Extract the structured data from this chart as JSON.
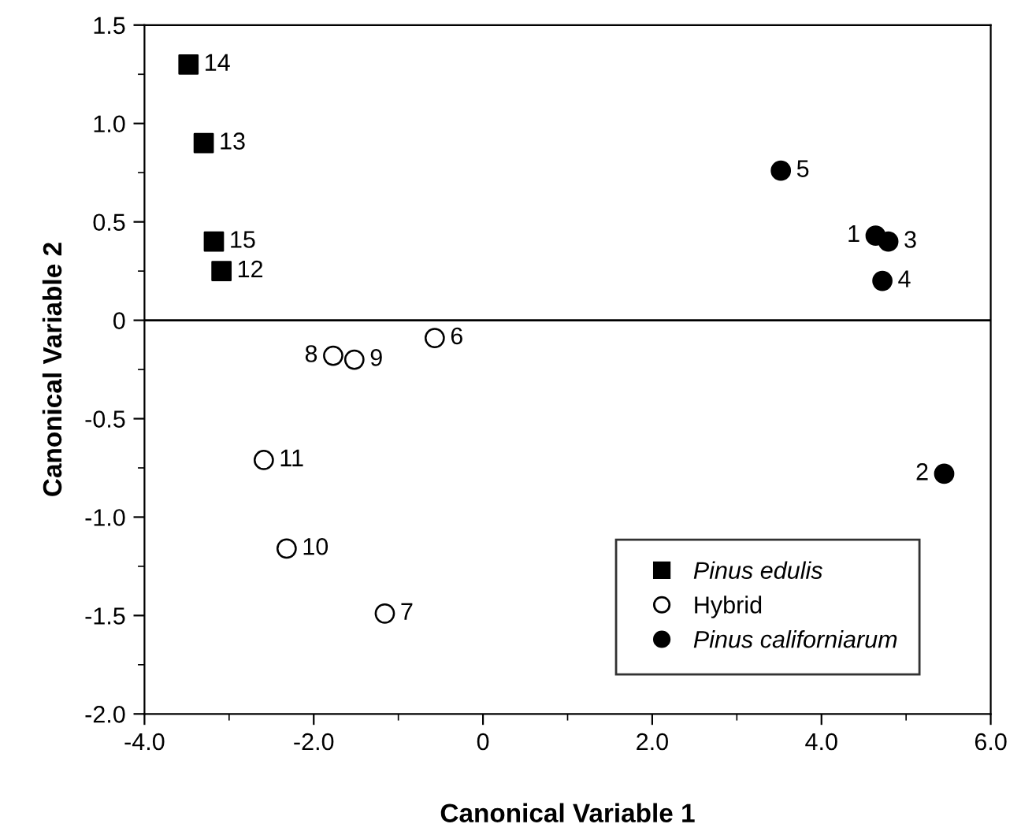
{
  "chart_data": {
    "type": "scatter",
    "xlabel": "Canonical Variable 1",
    "ylabel": "Canonical Variable 2",
    "xlim": [
      -4.0,
      6.0
    ],
    "xticks": [
      {
        "value": -4,
        "label": "-4.0"
      },
      {
        "value": -2,
        "label": "-2.0"
      },
      {
        "value": 0,
        "label": "0"
      },
      {
        "value": 2,
        "label": "2.0"
      },
      {
        "value": 4,
        "label": "4.0"
      },
      {
        "value": 6,
        "label": "6.0"
      }
    ],
    "ylim": [
      -2.0,
      1.5
    ],
    "yticks": [
      {
        "value": -2,
        "label": "-2.0"
      },
      {
        "value": -1.5,
        "label": "-1.5"
      },
      {
        "value": -1,
        "label": "-1.0"
      },
      {
        "value": -0.5,
        "label": "-0.5"
      },
      {
        "value": 0,
        "label": "0"
      },
      {
        "value": 0.5,
        "label": "0.5"
      },
      {
        "value": 1,
        "label": "1.0"
      },
      {
        "value": 1.5,
        "label": "1.5"
      }
    ],
    "grid": false,
    "legend": "bottom right",
    "ref_lines": [
      {
        "axis": "y",
        "value": 0,
        "color": "#000000",
        "line_style": "solid"
      }
    ],
    "series": [
      {
        "name": "Pinus edulis",
        "color": "#000000",
        "marker": "square",
        "x": [
          -3.48,
          -3.3,
          -3.18,
          -3.09
        ],
        "values": [
          1.3,
          0.9,
          0.4,
          0.25
        ]
      },
      {
        "name": "Hybrid",
        "color": "#ffffff",
        "marker": "circle",
        "x": [
          -0.57,
          -1.77,
          -1.52,
          -2.59,
          -2.32,
          -1.16
        ],
        "values": [
          -0.09,
          -0.18,
          -0.2,
          -0.71,
          -1.16,
          -1.49
        ]
      },
      {
        "name": "Pinus californiarum",
        "color": "#000000",
        "marker": "circle",
        "x": [
          3.52,
          4.64,
          4.79,
          4.72,
          5.45
        ],
        "values": [
          0.76,
          0.43,
          0.4,
          0.2,
          -0.78
        ]
      }
    ],
    "annotations": [
      {
        "text": "14",
        "x": -3.48,
        "y": 1.3
      },
      {
        "text": "13",
        "x": -3.3,
        "y": 0.9
      },
      {
        "text": "15",
        "x": -3.18,
        "y": 0.4
      },
      {
        "text": "12",
        "x": -3.09,
        "y": 0.25
      },
      {
        "text": "6",
        "x": -0.57,
        "y": -0.09
      },
      {
        "text": "8",
        "x": -1.77,
        "y": -0.18
      },
      {
        "text": "9",
        "x": -1.52,
        "y": -0.2
      },
      {
        "text": "11",
        "x": -2.59,
        "y": -0.71
      },
      {
        "text": "10",
        "x": -2.32,
        "y": -1.16
      },
      {
        "text": "7",
        "x": -1.16,
        "y": -1.49
      },
      {
        "text": "5",
        "x": 3.52,
        "y": 0.76
      },
      {
        "text": "1",
        "x": 4.64,
        "y": 0.43
      },
      {
        "text": "3",
        "x": 4.79,
        "y": 0.4
      },
      {
        "text": "4",
        "x": 4.72,
        "y": 0.2
      },
      {
        "text": "2",
        "x": 5.45,
        "y": -0.78
      }
    ]
  }
}
